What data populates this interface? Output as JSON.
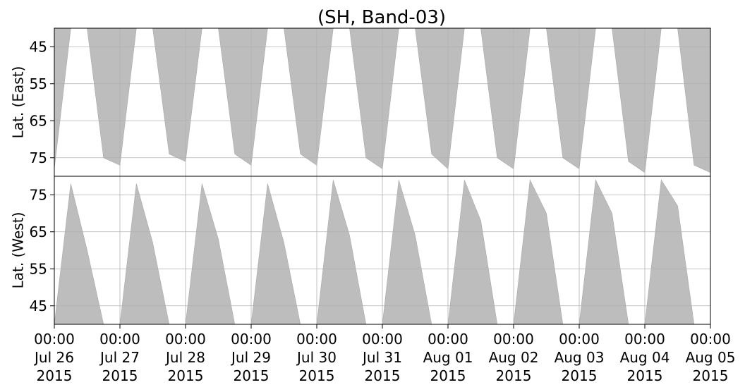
{
  "chart_data": [
    {
      "type": "area",
      "title": "(SH, Band-03)",
      "ylabel": "Lat. (East)",
      "ylim": [
        40,
        80
      ],
      "y_inverted": true,
      "yticks": [
        "45",
        "55",
        "65",
        "75"
      ],
      "ytick_values": [
        45,
        55,
        65,
        75
      ],
      "grid": true,
      "fill_color": "#bdbdbd",
      "series": [
        {
          "x": [
            "2015-07-26 00:00",
            "2015-07-26 06:00",
            "2015-07-26 12:00",
            "2015-07-26 18:00",
            "2015-07-27 00:00",
            "2015-07-27 06:00",
            "2015-07-27 12:00",
            "2015-07-27 18:00",
            "2015-07-28 00:00",
            "2015-07-28 06:00",
            "2015-07-28 12:00",
            "2015-07-28 18:00",
            "2015-07-29 00:00",
            "2015-07-29 06:00",
            "2015-07-29 12:00",
            "2015-07-29 18:00",
            "2015-07-30 00:00",
            "2015-07-30 06:00",
            "2015-07-30 12:00",
            "2015-07-30 18:00",
            "2015-07-31 00:00",
            "2015-07-31 06:00",
            "2015-07-31 12:00",
            "2015-07-31 18:00",
            "2015-08-01 00:00",
            "2015-08-01 06:00",
            "2015-08-01 12:00",
            "2015-08-01 18:00",
            "2015-08-02 00:00",
            "2015-08-02 06:00",
            "2015-08-02 12:00",
            "2015-08-02 18:00",
            "2015-08-03 00:00",
            "2015-08-03 06:00",
            "2015-08-03 12:00",
            "2015-08-03 18:00",
            "2015-08-04 00:00",
            "2015-08-04 06:00",
            "2015-08-04 12:00",
            "2015-08-04 18:00",
            "2015-08-05 00:00"
          ],
          "y": [
            78,
            40,
            40,
            75,
            77,
            40,
            40,
            74,
            76,
            40,
            40,
            74,
            77,
            40,
            40,
            74,
            77,
            40,
            40,
            75,
            78,
            40,
            40,
            74,
            78,
            40,
            40,
            75,
            78,
            40,
            40,
            75,
            78,
            40,
            40,
            76,
            79,
            40,
            40,
            77,
            79
          ]
        }
      ]
    },
    {
      "type": "area",
      "ylabel": "Lat. (West)",
      "ylim": [
        40,
        80
      ],
      "yticks": [
        "75",
        "65",
        "55",
        "45"
      ],
      "ytick_values": [
        75,
        65,
        55,
        45
      ],
      "grid": true,
      "fill_color": "#bdbdbd",
      "series": [
        {
          "x": [
            "2015-07-26 00:00",
            "2015-07-26 06:00",
            "2015-07-26 12:00",
            "2015-07-26 18:00",
            "2015-07-27 00:00",
            "2015-07-27 06:00",
            "2015-07-27 12:00",
            "2015-07-27 18:00",
            "2015-07-28 00:00",
            "2015-07-28 06:00",
            "2015-07-28 12:00",
            "2015-07-28 18:00",
            "2015-07-29 00:00",
            "2015-07-29 06:00",
            "2015-07-29 12:00",
            "2015-07-29 18:00",
            "2015-07-30 00:00",
            "2015-07-30 06:00",
            "2015-07-30 12:00",
            "2015-07-30 18:00",
            "2015-07-31 00:00",
            "2015-07-31 06:00",
            "2015-07-31 12:00",
            "2015-07-31 18:00",
            "2015-08-01 00:00",
            "2015-08-01 06:00",
            "2015-08-01 12:00",
            "2015-08-01 18:00",
            "2015-08-02 00:00",
            "2015-08-02 06:00",
            "2015-08-02 12:00",
            "2015-08-02 18:00",
            "2015-08-03 00:00",
            "2015-08-03 06:00",
            "2015-08-03 12:00",
            "2015-08-03 18:00",
            "2015-08-04 00:00",
            "2015-08-04 06:00",
            "2015-08-04 12:00",
            "2015-08-04 18:00",
            "2015-08-05 00:00"
          ],
          "y": [
            40,
            78,
            60,
            40,
            40,
            78,
            62,
            40,
            40,
            78,
            63,
            40,
            40,
            78,
            62,
            40,
            40,
            79,
            64,
            40,
            40,
            79,
            64,
            40,
            40,
            79,
            68,
            40,
            40,
            79,
            70,
            40,
            40,
            79,
            70,
            40,
            40,
            79,
            72,
            40,
            40
          ]
        }
      ],
      "xticks": [
        [
          "00:00",
          "Jul 26",
          "2015"
        ],
        [
          "00:00",
          "Jul 27",
          "2015"
        ],
        [
          "00:00",
          "Jul 28",
          "2015"
        ],
        [
          "00:00",
          "Jul 29",
          "2015"
        ],
        [
          "00:00",
          "Jul 30",
          "2015"
        ],
        [
          "00:00",
          "Jul 31",
          "2015"
        ],
        [
          "00:00",
          "Aug 01",
          "2015"
        ],
        [
          "00:00",
          "Aug 02",
          "2015"
        ],
        [
          "00:00",
          "Aug 03",
          "2015"
        ],
        [
          "00:00",
          "Aug 04",
          "2015"
        ],
        [
          "00:00",
          "Aug 05",
          "2015"
        ]
      ],
      "xlim": [
        "2015-07-26 00:00",
        "2015-08-05 00:00"
      ]
    }
  ]
}
